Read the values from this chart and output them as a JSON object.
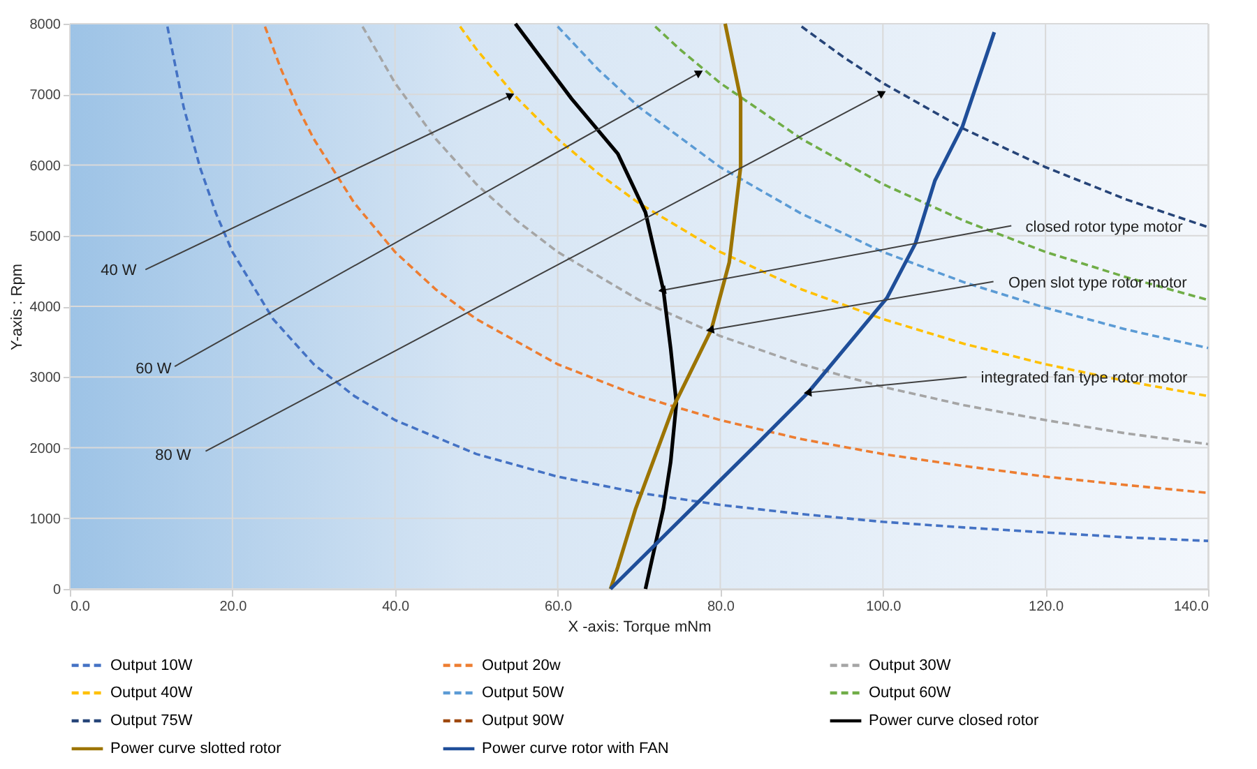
{
  "chart_data": {
    "type": "line",
    "xlabel": "X -axis: Torque mNm",
    "ylabel": "Y-axis : Rpm",
    "xlim": [
      0,
      140
    ],
    "ylim": [
      0,
      8000
    ],
    "xticks": [
      {
        "value": 0,
        "label": "0.0"
      },
      {
        "value": 20,
        "label": "20.0"
      },
      {
        "value": 40,
        "label": "40.0"
      },
      {
        "value": 60,
        "label": "60.0"
      },
      {
        "value": 80,
        "label": "80.0"
      },
      {
        "value": 100,
        "label": "100.0"
      },
      {
        "value": 120,
        "label": "120.0"
      },
      {
        "value": 140,
        "label": "140.0"
      }
    ],
    "yticks": [
      0,
      1000,
      2000,
      3000,
      4000,
      5000,
      6000,
      7000,
      8000
    ],
    "grid": true,
    "legend": "bottom",
    "marker": "none",
    "series": [
      {
        "name": "Output 10W",
        "color": "#4472c4",
        "line_style": "dashed",
        "x": [
          12,
          14,
          16,
          18,
          20,
          25,
          30,
          35,
          40,
          50,
          60,
          70,
          80,
          90,
          100,
          110,
          120,
          130,
          140
        ],
        "values": [
          7960,
          6820,
          5970,
          5310,
          4770,
          3820,
          3180,
          2730,
          2390,
          1910,
          1590,
          1360,
          1190,
          1060,
          950,
          870,
          800,
          730,
          680
        ]
      },
      {
        "name": "Output 20w",
        "color": "#ed7d31",
        "line_style": "dashed",
        "x": [
          24,
          26,
          28,
          30,
          35,
          40,
          45,
          50,
          60,
          70,
          80,
          90,
          100,
          110,
          120,
          130,
          140
        ],
        "values": [
          7960,
          7350,
          6820,
          6370,
          5460,
          4770,
          4240,
          3820,
          3180,
          2730,
          2390,
          2120,
          1910,
          1740,
          1590,
          1470,
          1360
        ]
      },
      {
        "name": "Output 30W",
        "color": "#a5a5a5",
        "line_style": "dashed",
        "x": [
          36,
          40,
          45,
          50,
          55,
          60,
          70,
          80,
          90,
          100,
          110,
          120,
          130,
          140
        ],
        "values": [
          7960,
          7160,
          6370,
          5730,
          5210,
          4770,
          4090,
          3580,
          3180,
          2860,
          2600,
          2390,
          2200,
          2050
        ]
      },
      {
        "name": "Output 40W",
        "color": "#ffc000",
        "line_style": "dashed",
        "x": [
          48,
          50,
          55,
          60,
          65,
          70,
          80,
          90,
          100,
          110,
          120,
          130,
          140
        ],
        "values": [
          7960,
          7640,
          6950,
          6370,
          5880,
          5460,
          4770,
          4240,
          3820,
          3470,
          3180,
          2940,
          2730
        ]
      },
      {
        "name": "Output 50W",
        "color": "#5b9bd5",
        "line_style": "dashed",
        "x": [
          60,
          65,
          70,
          80,
          90,
          100,
          110,
          120,
          130,
          140
        ],
        "values": [
          7960,
          7350,
          6820,
          5970,
          5310,
          4770,
          4340,
          3980,
          3670,
          3410
        ]
      },
      {
        "name": "Output 60W",
        "color": "#70ad47",
        "line_style": "dashed",
        "x": [
          72,
          75,
          80,
          90,
          100,
          110,
          120,
          130,
          140
        ],
        "values": [
          7960,
          7640,
          7160,
          6370,
          5730,
          5210,
          4770,
          4410,
          4090
        ]
      },
      {
        "name": "Output 75W",
        "color": "#264478",
        "line_style": "dashed",
        "x": [
          90,
          95,
          100,
          110,
          120,
          130,
          140
        ],
        "values": [
          7960,
          7540,
          7160,
          6510,
          5970,
          5510,
          5120
        ]
      },
      {
        "name": "Output 90W",
        "color": "#9e480e",
        "line_style": "dashed"
      },
      {
        "name": "Power curve closed rotor",
        "color": "#000000",
        "line_style": "solid",
        "x": [
          70.8,
          73.0,
          73.9,
          74.6,
          73.9,
          73.0,
          70.8,
          67.4,
          61.7,
          54.8
        ],
        "values": [
          0,
          1140,
          1800,
          2630,
          3400,
          4230,
          5330,
          6160,
          6940,
          8000
        ]
      },
      {
        "name": "Power curve slotted rotor",
        "color": "#9c7400",
        "line_style": "solid",
        "x": [
          66.5,
          67.4,
          69.6,
          74.2,
          78.9,
          81.1,
          82.5,
          82.5,
          80.6
        ],
        "values": [
          0,
          310,
          1140,
          2570,
          3670,
          4620,
          5970,
          6940,
          8000
        ]
      },
      {
        "name": "Power curve rotor with FAN",
        "color": "#1f4e99",
        "line_style": "solid",
        "x": [
          66.5,
          76.5,
          84.5,
          90.8,
          100.5,
          104,
          106.4,
          109.8,
          113.7
        ],
        "values": [
          0,
          1140,
          2050,
          2780,
          4120,
          4890,
          5780,
          6550,
          7880
        ]
      }
    ],
    "annotations": [
      {
        "text": "40 W",
        "x": 54.1,
        "y": 6980
      },
      {
        "text": "60 W",
        "x": 77.3,
        "y": 7300
      },
      {
        "text": "80 W",
        "x": 99.8,
        "y": 7010
      },
      {
        "text": "closed rotor type motor",
        "x": 73.0,
        "y": 4230
      },
      {
        "text": "Open slot type rotor motor",
        "x": 78.9,
        "y": 3670
      },
      {
        "text": "integrated fan type rotor motor",
        "x": 90.9,
        "y": 2780
      }
    ]
  }
}
